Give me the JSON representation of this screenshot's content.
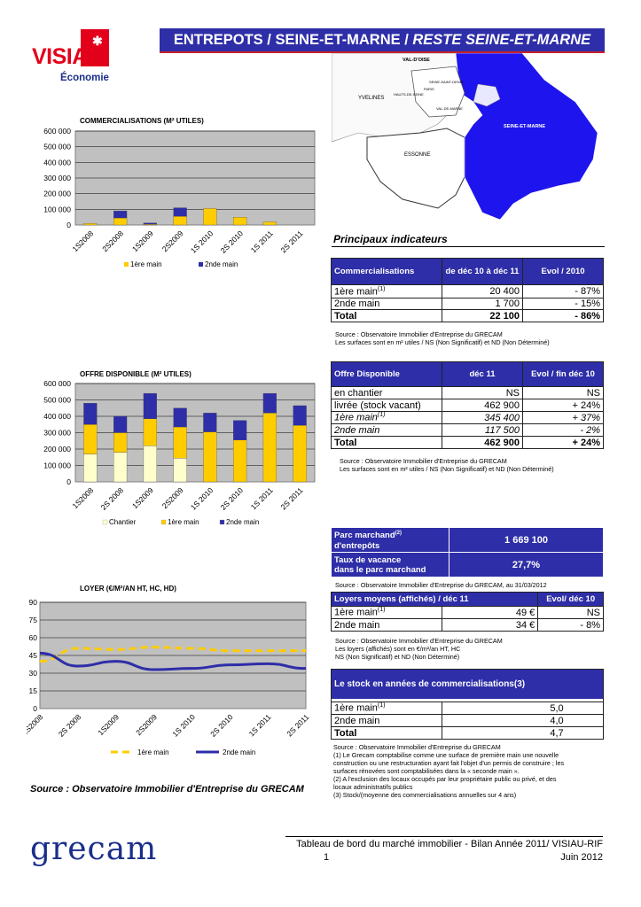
{
  "header": {
    "title_main": "ENTREPOTS / SEINE-ET-MARNE / ",
    "title_italic": "RESTE SEINE-ET-MARNE"
  },
  "logo": {
    "name": "VISIAU",
    "subtitle": "Économie"
  },
  "map": {
    "labels": [
      "VAL-D'OISE",
      "SEINE-SAINT-DENIS",
      "HAUTS-DE-SEINE",
      "PARIS",
      "VAL-DE-MARNE",
      "YVELINES",
      "ESSONNE",
      "SEINE-ET-MARNE"
    ]
  },
  "section_title": "Principaux indicateurs",
  "colors": {
    "navy": "#2e2ea8",
    "yellow": "#ffcc00",
    "cream": "#ffffcc",
    "plot_bg": "#c0c0c0",
    "red": "#c7222a"
  },
  "chart_data": [
    {
      "type": "bar",
      "title": "COMMERCIALISATIONS (M² UTILES)",
      "categories": [
        "1S2008",
        "2S2008",
        "1S2009",
        "2S2009",
        "1S 2010",
        "2S 2010",
        "1S 2011",
        "2S 2011"
      ],
      "series": [
        {
          "name": "1ère main",
          "values": [
            10000,
            45000,
            5000,
            55000,
            105000,
            50000,
            20000,
            0
          ]
        },
        {
          "name": "2nde main",
          "values": [
            0,
            45000,
            8000,
            55000,
            0,
            0,
            0,
            0
          ]
        }
      ],
      "ylim": [
        0,
        600000
      ],
      "yticks": [
        "0",
        "100 000",
        "200 000",
        "300 000",
        "400 000",
        "500 000",
        "600 000"
      ],
      "legend": [
        "1ère main",
        "2nde main"
      ]
    },
    {
      "type": "bar",
      "title": "OFFRE DISPONIBLE (M² UTILES)",
      "categories": [
        "1S2008",
        "2S 2008",
        "1S2009",
        "2S2009",
        "1S 2010",
        "2S 2010",
        "1S 2011",
        "2S 2011"
      ],
      "series": [
        {
          "name": "Chantier",
          "values": [
            170000,
            180000,
            220000,
            145000,
            0,
            0,
            0,
            0
          ]
        },
        {
          "name": "1ère main",
          "values": [
            180000,
            120000,
            165000,
            190000,
            305000,
            255000,
            420000,
            345000
          ]
        },
        {
          "name": "2nde main",
          "values": [
            130000,
            100000,
            155000,
            115000,
            115000,
            120000,
            120000,
            120000
          ]
        }
      ],
      "ylim": [
        0,
        600000
      ],
      "yticks": [
        "0",
        "100 000",
        "200 000",
        "300 000",
        "400 000",
        "500 000",
        "600 000"
      ],
      "legend": [
        "Chantier",
        "1ère main",
        "2nde main"
      ]
    },
    {
      "type": "line",
      "title": "LOYER (€/M²/AN HT, HC, HD)",
      "categories": [
        "1S2008",
        "2S 2008",
        "1S2009",
        "2S2009",
        "1S 2010",
        "2S 2010",
        "1S 2011",
        "2S 2011"
      ],
      "series": [
        {
          "name": "1ère main",
          "values": [
            40,
            51,
            50,
            52,
            51,
            49,
            49,
            49
          ]
        },
        {
          "name": "2nde main",
          "values": [
            47,
            36,
            40,
            33,
            34,
            37,
            38,
            34
          ]
        }
      ],
      "ylim": [
        0,
        90
      ],
      "yticks": [
        "0",
        "15",
        "30",
        "45",
        "60",
        "75",
        "90"
      ],
      "legend": [
        "1ère main",
        "2nde main"
      ]
    }
  ],
  "comm_table": {
    "headers": [
      "Commercialisations",
      "de déc 10 à déc 11",
      "Evol / 2010"
    ],
    "rows": [
      {
        "label": "1ère main",
        "sup": "(1)",
        "value": "20 400",
        "evol": "- 87%"
      },
      {
        "label": "2nde main",
        "sup": "",
        "value": "1 700",
        "evol": "- 15%"
      },
      {
        "label": "Total",
        "sup": "",
        "value": "22 100",
        "evol": "- 86%"
      }
    ],
    "source": [
      "Source : Observatoire Immobilier d'Entreprise du GRECAM",
      "Les surfaces sont en m² utiles / NS (Non Significatif) et ND (Non Déterminé)"
    ]
  },
  "offre_table": {
    "headers": [
      "Offre Disponible",
      "déc 11",
      "Evol / fin déc 10"
    ],
    "rows": [
      {
        "label": "en chantier",
        "sup": "",
        "value": "NS",
        "evol": "NS"
      },
      {
        "label": "livrée (stock vacant)",
        "sup": "",
        "value": "462 900",
        "evol": "+ 24%"
      },
      {
        "label": "1ère main",
        "sup": "(1)",
        "value": "345 400",
        "evol": "+ 37%"
      },
      {
        "label": "2nde main",
        "sup": "",
        "value": "117 500",
        "evol": "- 2%"
      },
      {
        "label": "Total",
        "sup": "",
        "value": "462 900",
        "evol": "+ 24%"
      }
    ],
    "source": [
      "Source : Observatoire Immobilier d'Entreprise du GRECAM",
      "Les surfaces sont en m² utiles / NS (Non Significatif) et ND (Non Déterminé)"
    ]
  },
  "parc_table": {
    "row1_label": "Parc marchand",
    "row1_sup": "(2)",
    "row1_label2": "d'entrepôts",
    "row1_value": "1 669 100",
    "row2_label": "Taux de vacance",
    "row2_label2": "dans le parc marchand",
    "row2_value": "27,7%",
    "source": "Source : Observatoire Immobilier d'Entreprise du GRECAM, au 31/03/2012"
  },
  "loyers_table": {
    "headers": [
      "Loyers moyens (affichés) / déc 11",
      "Evol/ déc 10"
    ],
    "rows": [
      {
        "label": "1ère main",
        "sup": "(1)",
        "value": "49 €",
        "evol": "NS"
      },
      {
        "label": "2nde  main",
        "sup": "",
        "value": "34 €",
        "evol": "- 8%"
      }
    ],
    "source": [
      "Source : Observatoire Immobilier d'Entreprise du GRECAM",
      "Les loyers (affichés) sont en €/m²/an HT, HC",
      "NS (Non Significatif) et ND (Non Déterminé)"
    ]
  },
  "stock_table": {
    "header": "Le stock en années de commercialisations(3)",
    "rows": [
      {
        "label": "1ère main",
        "sup": "(1)",
        "value": "5,0"
      },
      {
        "label": "2nde  main",
        "sup": "",
        "value": "4,0"
      },
      {
        "label": "Total",
        "sup": "",
        "value": "4,7"
      }
    ],
    "notes": [
      "Source : Observatoire Immobilier d'Entreprise du GRECAM",
      "(1) Le Grecam comptabilise comme une surface de première main une nouvelle",
      "construction ou une restructuration ayant fait l'objet d'un permis de construire ; les",
      "surfaces rénovées sont comptabilisées dans la « seconde main ».",
      "(2) A l'exclusion des locaux occupés par leur propriétaire public ou privé, et des",
      "locaux administratifs publics",
      "(3) Stock/(moyenne des commercialisations annuelles sur 4 ans)"
    ]
  },
  "source_main": "Source : Observatoire Immobilier d'Entreprise du GRECAM",
  "footer": {
    "logo": "grecam",
    "text": "Tableau de bord du marché immobilier - Bilan Année 2011/ VISIAU-RIF",
    "page": "1",
    "date": "Juin 2012"
  }
}
